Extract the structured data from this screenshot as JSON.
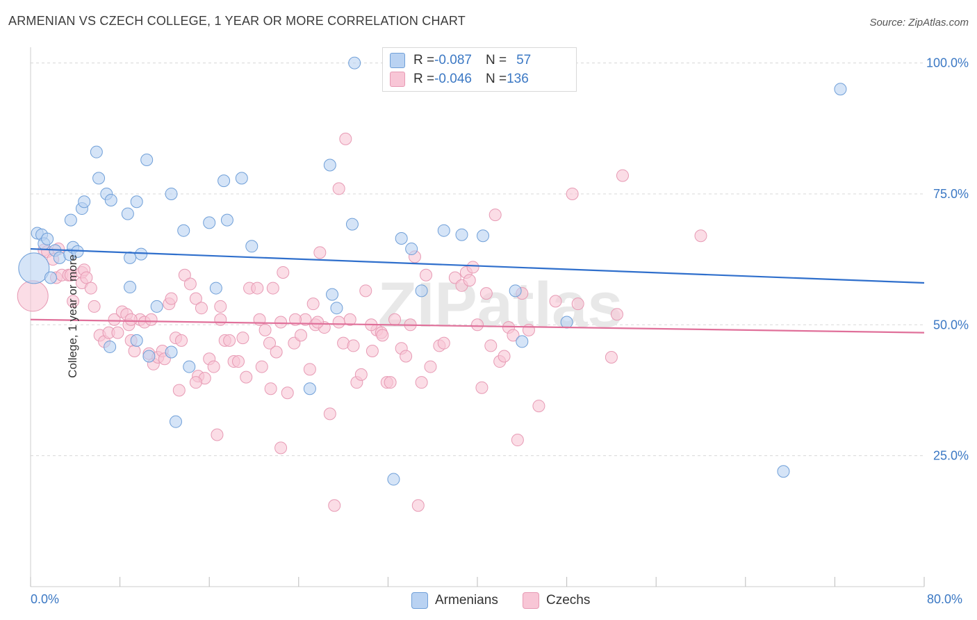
{
  "title": "ARMENIAN VS CZECH COLLEGE, 1 YEAR OR MORE CORRELATION CHART",
  "source": "Source: ZipAtlas.com",
  "watermark": "ZIPatlas",
  "legend": {
    "row1": {
      "r_label": "R = ",
      "r_value": "-0.087",
      "n_label": "N = ",
      "n_value": "57"
    },
    "row2": {
      "r_label": "R = ",
      "r_value": "-0.046",
      "n_label": "N = ",
      "n_value": "136"
    }
  },
  "colors": {
    "armenians_fill": "#b9d2f2",
    "armenians_stroke": "#6f9fd8",
    "armenians_line": "#2f6fcc",
    "czechs_fill": "#f8c6d6",
    "czechs_stroke": "#e79ab4",
    "czechs_line": "#e0709a",
    "tick_label": "#3b78c4",
    "grid": "#d8d8d8"
  },
  "chart_data": {
    "type": "scatter",
    "ylabel": "College, 1 year or more",
    "xlabel": "",
    "xlim": [
      0,
      80
    ],
    "ylim": [
      0,
      103
    ],
    "x_tick_labels": {
      "min": "0.0%",
      "max": "80.0%"
    },
    "y_tick_labels": [
      "25.0%",
      "50.0%",
      "75.0%",
      "100.0%"
    ],
    "y_ticks": [
      25,
      50,
      75,
      100
    ],
    "legend_position": "top-center",
    "series": [
      {
        "name": "Armenians",
        "r": -0.087,
        "n": 57,
        "trend": {
          "x0": 0,
          "y0": 64.5,
          "x1": 80,
          "y1": 58.0
        },
        "points": [
          [
            0.3,
            60.8
          ],
          [
            0.6,
            67.5
          ],
          [
            1.0,
            67.2
          ],
          [
            1.2,
            65.5
          ],
          [
            1.5,
            66.4
          ],
          [
            1.8,
            59.0
          ],
          [
            2.2,
            64.2
          ],
          [
            2.6,
            62.8
          ],
          [
            3.5,
            63.4
          ],
          [
            3.8,
            64.8
          ],
          [
            4.2,
            64.0
          ],
          [
            3.6,
            70.0
          ],
          [
            4.6,
            72.2
          ],
          [
            4.8,
            73.5
          ],
          [
            6.1,
            78.0
          ],
          [
            5.9,
            83.0
          ],
          [
            6.8,
            75.0
          ],
          [
            7.2,
            73.8
          ],
          [
            8.7,
            71.2
          ],
          [
            9.5,
            73.5
          ],
          [
            10.4,
            81.5
          ],
          [
            9.9,
            63.5
          ],
          [
            8.9,
            62.8
          ],
          [
            8.9,
            57.2
          ],
          [
            7.1,
            45.8
          ],
          [
            9.5,
            47.0
          ],
          [
            10.6,
            44.0
          ],
          [
            11.3,
            53.5
          ],
          [
            12.6,
            44.8
          ],
          [
            12.6,
            75.0
          ],
          [
            13.7,
            68.0
          ],
          [
            14.2,
            42.0
          ],
          [
            13.0,
            31.5
          ],
          [
            16.0,
            69.5
          ],
          [
            16.6,
            57.0
          ],
          [
            17.3,
            77.5
          ],
          [
            17.6,
            70.0
          ],
          [
            18.9,
            78.0
          ],
          [
            19.8,
            65.0
          ],
          [
            27.0,
            55.8
          ],
          [
            26.8,
            80.5
          ],
          [
            27.4,
            53.2
          ],
          [
            28.8,
            69.2
          ],
          [
            29.0,
            100.0
          ],
          [
            25.0,
            37.8
          ],
          [
            33.2,
            66.5
          ],
          [
            34.1,
            64.5
          ],
          [
            35.0,
            56.5
          ],
          [
            37.0,
            68.0
          ],
          [
            38.6,
            67.2
          ],
          [
            40.5,
            67.0
          ],
          [
            43.4,
            56.5
          ],
          [
            44.0,
            46.8
          ],
          [
            48.0,
            50.5
          ],
          [
            32.5,
            20.5
          ],
          [
            67.4,
            22.0
          ],
          [
            72.5,
            95.0
          ]
        ]
      },
      {
        "name": "Czechs",
        "r": -0.046,
        "n": 136,
        "trend": {
          "x0": 0,
          "y0": 51.0,
          "x1": 80,
          "y1": 48.5
        },
        "points": [
          [
            0.2,
            55.5
          ],
          [
            1.2,
            64.3
          ],
          [
            1.5,
            64.0
          ],
          [
            2.0,
            62.5
          ],
          [
            2.5,
            64.5
          ],
          [
            2.3,
            59.0
          ],
          [
            2.8,
            59.5
          ],
          [
            3.4,
            59.5
          ],
          [
            3.6,
            59.5
          ],
          [
            3.8,
            54.5
          ],
          [
            4.6,
            60.0
          ],
          [
            4.8,
            60.5
          ],
          [
            4.6,
            58.0
          ],
          [
            5.0,
            59.0
          ],
          [
            5.4,
            57.0
          ],
          [
            5.7,
            53.5
          ],
          [
            6.2,
            48.0
          ],
          [
            6.6,
            46.8
          ],
          [
            7.0,
            48.5
          ],
          [
            7.5,
            51.0
          ],
          [
            7.8,
            48.5
          ],
          [
            8.2,
            52.5
          ],
          [
            8.6,
            52.0
          ],
          [
            8.8,
            50.0
          ],
          [
            9.0,
            47.0
          ],
          [
            9.3,
            45.0
          ],
          [
            9.8,
            51.0
          ],
          [
            10.2,
            50.5
          ],
          [
            10.6,
            44.5
          ],
          [
            10.8,
            51.0
          ],
          [
            11.0,
            42.5
          ],
          [
            11.4,
            43.8
          ],
          [
            11.8,
            45.0
          ],
          [
            12.0,
            43.5
          ],
          [
            12.4,
            54.0
          ],
          [
            12.6,
            55.0
          ],
          [
            13.0,
            47.5
          ],
          [
            13.5,
            47.0
          ],
          [
            13.8,
            59.5
          ],
          [
            14.3,
            57.8
          ],
          [
            14.8,
            55.0
          ],
          [
            15.3,
            53.2
          ],
          [
            15.0,
            40.2
          ],
          [
            15.6,
            39.8
          ],
          [
            16.0,
            43.5
          ],
          [
            16.4,
            42.0
          ],
          [
            16.7,
            29.0
          ],
          [
            17.0,
            53.5
          ],
          [
            17.4,
            47.0
          ],
          [
            17.8,
            47.0
          ],
          [
            18.2,
            43.0
          ],
          [
            18.6,
            43.0
          ],
          [
            19.0,
            47.5
          ],
          [
            19.3,
            40.0
          ],
          [
            19.6,
            57.0
          ],
          [
            20.3,
            57.0
          ],
          [
            20.7,
            42.0
          ],
          [
            21.0,
            49.0
          ],
          [
            21.4,
            46.5
          ],
          [
            21.7,
            57.0
          ],
          [
            22.0,
            44.8
          ],
          [
            22.4,
            50.5
          ],
          [
            22.6,
            60.0
          ],
          [
            23.0,
            37.0
          ],
          [
            23.6,
            46.5
          ],
          [
            24.2,
            48.0
          ],
          [
            24.6,
            51.0
          ],
          [
            25.0,
            41.5
          ],
          [
            25.3,
            54.0
          ],
          [
            25.5,
            50.0
          ],
          [
            25.9,
            63.8
          ],
          [
            26.3,
            49.5
          ],
          [
            26.8,
            33.0
          ],
          [
            27.2,
            15.5
          ],
          [
            27.6,
            76.0
          ],
          [
            28.0,
            46.5
          ],
          [
            28.2,
            85.5
          ],
          [
            28.6,
            51.0
          ],
          [
            28.9,
            46.0
          ],
          [
            29.2,
            39.0
          ],
          [
            29.6,
            40.5
          ],
          [
            30.0,
            56.5
          ],
          [
            30.6,
            45.0
          ],
          [
            31.0,
            49.0
          ],
          [
            31.4,
            48.5
          ],
          [
            31.9,
            39.0
          ],
          [
            32.2,
            39.0
          ],
          [
            32.6,
            51.0
          ],
          [
            33.2,
            45.5
          ],
          [
            33.6,
            44.0
          ],
          [
            34.0,
            50.0
          ],
          [
            34.4,
            63.0
          ],
          [
            34.7,
            15.5
          ],
          [
            35.0,
            39.0
          ],
          [
            35.4,
            59.5
          ],
          [
            35.8,
            42.0
          ],
          [
            36.6,
            46.0
          ],
          [
            37.0,
            46.5
          ],
          [
            38.0,
            59.0
          ],
          [
            38.6,
            57.5
          ],
          [
            39.0,
            60.0
          ],
          [
            39.3,
            58.5
          ],
          [
            39.6,
            61.0
          ],
          [
            40.0,
            50.0
          ],
          [
            40.4,
            38.0
          ],
          [
            40.8,
            56.0
          ],
          [
            41.2,
            46.0
          ],
          [
            41.6,
            71.0
          ],
          [
            42.0,
            43.0
          ],
          [
            42.4,
            44.0
          ],
          [
            42.8,
            49.5
          ],
          [
            43.2,
            48.0
          ],
          [
            43.6,
            28.0
          ],
          [
            44.0,
            56.0
          ],
          [
            44.6,
            49.0
          ],
          [
            45.5,
            34.5
          ],
          [
            47.0,
            54.5
          ],
          [
            49.0,
            54.0
          ],
          [
            48.5,
            75.0
          ],
          [
            52.0,
            43.8
          ],
          [
            53.0,
            78.5
          ],
          [
            52.5,
            52.0
          ],
          [
            60.0,
            67.0
          ],
          [
            9.0,
            51.0
          ],
          [
            17.0,
            51.0
          ],
          [
            20.5,
            51.0
          ],
          [
            23.7,
            51.0
          ],
          [
            25.7,
            50.5
          ],
          [
            27.6,
            50.5
          ],
          [
            21.5,
            37.8
          ],
          [
            13.3,
            37.5
          ],
          [
            14.8,
            39.0
          ],
          [
            30.5,
            50.0
          ],
          [
            31.5,
            48.0
          ],
          [
            22.4,
            26.5
          ]
        ]
      }
    ]
  }
}
